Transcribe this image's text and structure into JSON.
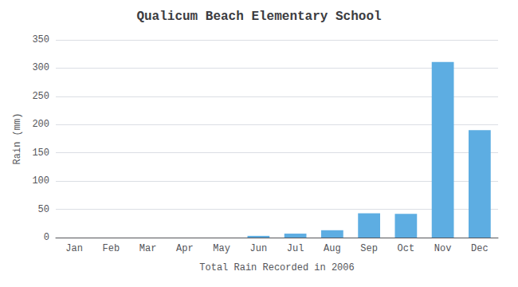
{
  "chart_data": {
    "type": "bar",
    "title": "Qualicum Beach Elementary School",
    "xlabel": "Total Rain Recorded in 2006",
    "ylabel": "Rain (mm)",
    "categories": [
      "Jan",
      "Feb",
      "Mar",
      "Apr",
      "May",
      "Jun",
      "Jul",
      "Aug",
      "Sep",
      "Oct",
      "Nov",
      "Dec"
    ],
    "values": [
      0,
      0,
      0,
      0,
      0,
      3,
      7,
      13,
      43,
      42,
      311,
      190
    ],
    "color": "#5DADE2",
    "ylim": [
      0,
      350
    ],
    "yticks": [
      0,
      50,
      100,
      150,
      200,
      250,
      300,
      350
    ],
    "grid": true
  }
}
